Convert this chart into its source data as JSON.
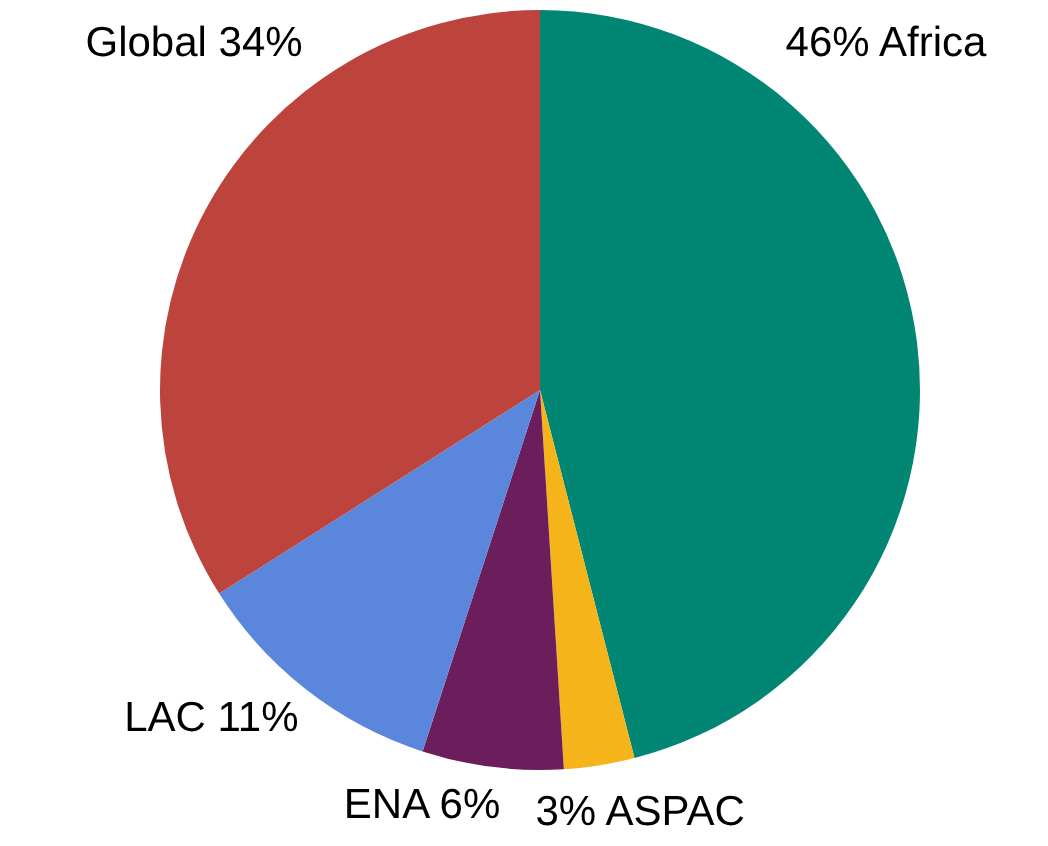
{
  "chart_data": {
    "type": "pie",
    "categories": [
      "Africa",
      "ASPAC",
      "ENA",
      "LAC",
      "Global"
    ],
    "values": [
      46,
      3,
      6,
      11,
      34
    ],
    "colors": [
      "#008673",
      "#f4b41a",
      "#6b1d5c",
      "#5a87dc",
      "#bc443c"
    ],
    "value_labels": [
      "46%",
      "3%",
      "6%",
      "11%",
      "34%"
    ]
  }
}
